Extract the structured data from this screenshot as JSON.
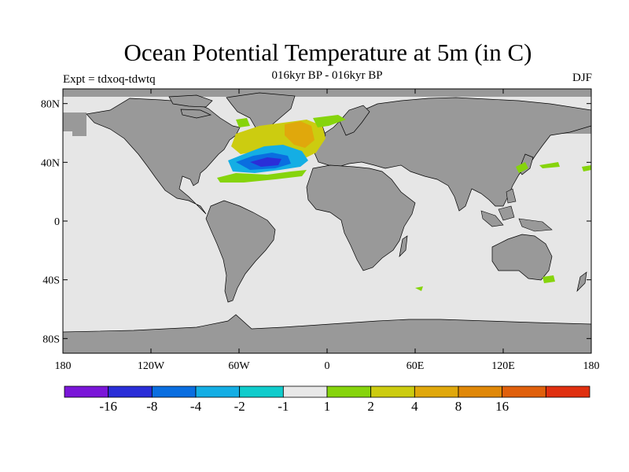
{
  "title": "Ocean Potential Temperature at 5m (in C)",
  "subtitle": "016kyr BP - 016kyr BP",
  "experiment": "Expt = tdxoq-tdwtq",
  "season": "DJF",
  "map": {
    "projection": "cylindrical equidistant",
    "lon_range": [
      -180,
      180
    ],
    "lat_range": [
      -90,
      90
    ],
    "land_color": "#999999",
    "ocean_color": "#e6e6e6",
    "y_ticks": [
      {
        "lat": 80,
        "label": "80N"
      },
      {
        "lat": 40,
        "label": "40N"
      },
      {
        "lat": 0,
        "label": "0"
      },
      {
        "lat": -40,
        "label": "40S"
      },
      {
        "lat": -80,
        "label": "80S"
      }
    ],
    "x_ticks": [
      {
        "lon": -180,
        "label": "180"
      },
      {
        "lon": -120,
        "label": "120W"
      },
      {
        "lon": -60,
        "label": "60W"
      },
      {
        "lon": 0,
        "label": "0"
      },
      {
        "lon": 60,
        "label": "60E"
      },
      {
        "lon": 120,
        "label": "120E"
      },
      {
        "lon": 180,
        "label": "180"
      }
    ]
  },
  "colorbar": {
    "colors": [
      "#7a16d8",
      "#2a2ed8",
      "#0a6ee0",
      "#14aee4",
      "#10cccc",
      "#e8e8e8",
      "#86d40c",
      "#cccc10",
      "#e0a80c",
      "#e08808",
      "#e0600c",
      "#e03010"
    ],
    "labels": [
      "-16",
      "-8",
      "-4",
      "-2",
      "-1",
      "1",
      "2",
      "4",
      "8",
      "16"
    ]
  },
  "anomaly_regions": [
    {
      "name": "north-atlantic-warm-band",
      "level": "2",
      "color": "#cccc10"
    },
    {
      "name": "north-atlantic-strong-warm",
      "level": "4",
      "color": "#e0a80c"
    },
    {
      "name": "gulf-stream-cool-core",
      "level": "-2",
      "color": "#14aee4"
    },
    {
      "name": "gulf-stream-cold-center",
      "level": "-8",
      "color": "#2a2ed8"
    },
    {
      "name": "subtropical-warm-fringe",
      "level": "1",
      "color": "#86d40c"
    },
    {
      "name": "japan-warm-patch",
      "level": "1",
      "color": "#86d40c"
    },
    {
      "name": "tasman-warm-patch",
      "level": "1",
      "color": "#86d40c"
    }
  ]
}
